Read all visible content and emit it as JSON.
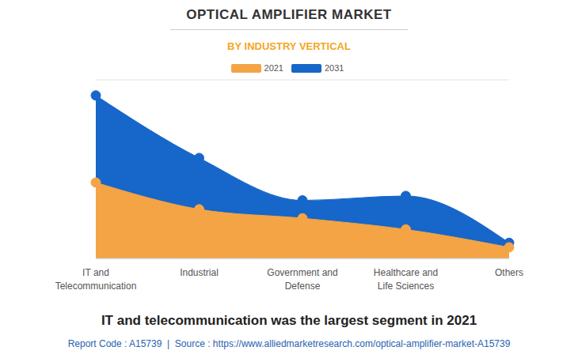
{
  "chart_data": {
    "type": "area",
    "title": "OPTICAL AMPLIFIER MARKET",
    "subtitle": "BY INDUSTRY VERTICAL",
    "annotations": [
      "IT and telecommunication was the largest segment in 2021",
      "Report Code : A15739  |  Source : https://www.alliedmarketresearch.com/optical-amplifier-market-A15739"
    ],
    "categories": [
      "IT and Telecommunication",
      "Industrial",
      "Government and Defense",
      "Healthcare and Life Sciences",
      "Others"
    ],
    "series": [
      {
        "name": "2021",
        "color": "#f4a444",
        "values": [
          3.4,
          2.2,
          1.8,
          1.3,
          0.5
        ]
      },
      {
        "name": "2031",
        "color": "#1766c9",
        "values": [
          7.3,
          4.5,
          2.6,
          2.8,
          0.7
        ]
      }
    ],
    "ylim": [
      0,
      8
    ],
    "yticks": [
      0,
      1,
      2,
      3,
      4,
      5,
      6,
      7
    ],
    "grid": true,
    "tick_labels": "x",
    "legend": "top",
    "marker": "circle"
  }
}
